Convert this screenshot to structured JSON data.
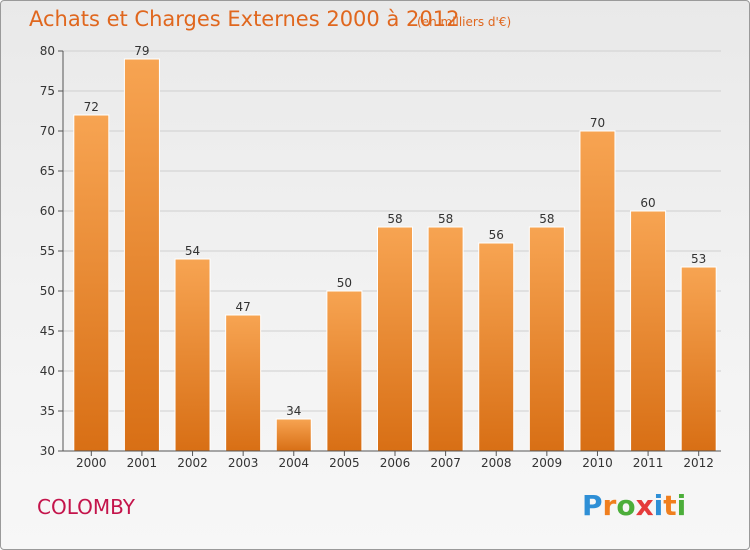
{
  "title": "Achats et Charges Externes 2000 à 2012",
  "subtitle": "(en milliers d'€)",
  "commune": "COLOMBY",
  "brand": {
    "letters": [
      "P",
      "r",
      "o",
      "x",
      "i",
      "t",
      "i"
    ],
    "colors": [
      "#2e8fd6",
      "#f07f1e",
      "#4cae3a",
      "#e53b3b",
      "#2e8fd6",
      "#f07f1e",
      "#4cae3a"
    ]
  },
  "colors": {
    "bar_top": "#f7a452",
    "bar_bottom": "#d86f15",
    "grid": "#cfcfcf",
    "axis": "#555555"
  },
  "chart_data": {
    "type": "bar",
    "title": "Achats et Charges Externes 2000 à 2012",
    "xlabel": "",
    "ylabel": "",
    "categories": [
      "2000",
      "2001",
      "2002",
      "2003",
      "2004",
      "2005",
      "2006",
      "2007",
      "2008",
      "2009",
      "2010",
      "2011",
      "2012"
    ],
    "values": [
      72,
      79,
      54,
      47,
      34,
      50,
      58,
      58,
      56,
      58,
      70,
      60,
      53
    ],
    "ylim": [
      30,
      80
    ],
    "yticks": [
      30,
      35,
      40,
      45,
      50,
      55,
      60,
      65,
      70,
      75,
      80
    ],
    "grid": true
  }
}
